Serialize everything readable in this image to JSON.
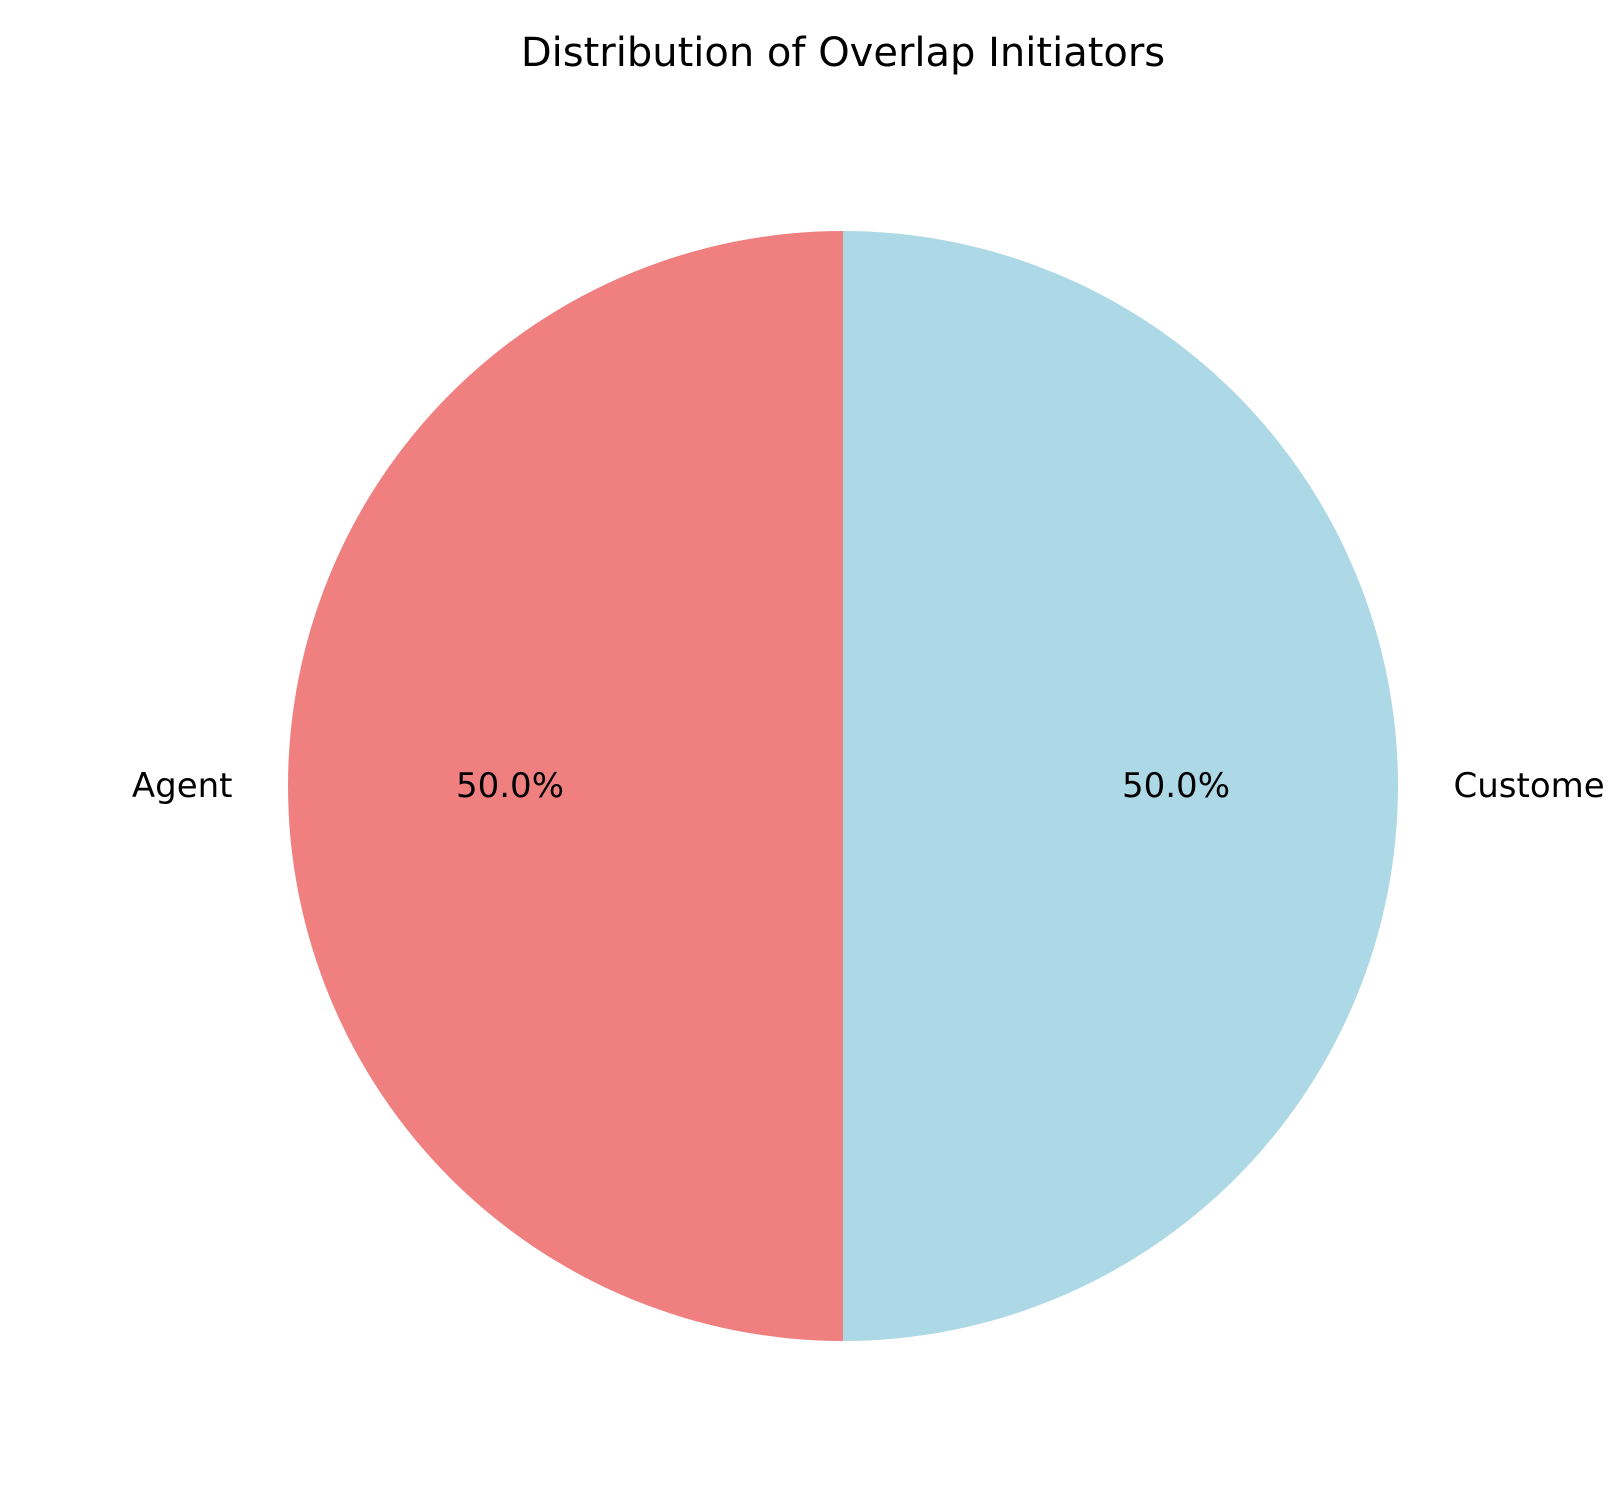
{
  "chart_data": {
    "type": "pie",
    "title": "Distribution of Overlap Initiators",
    "slices": [
      {
        "label": "Agent",
        "value": 50.0,
        "pct_label": "50.0%",
        "color": "#f08080"
      },
      {
        "label": "Customer",
        "value": 50.0,
        "pct_label": "50.0%",
        "color": "#add8e6"
      }
    ],
    "start_angle_deg": 90,
    "direction": "counterclockwise"
  }
}
